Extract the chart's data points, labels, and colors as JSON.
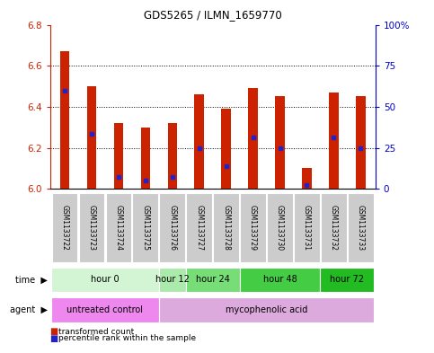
{
  "title": "GDS5265 / ILMN_1659770",
  "samples": [
    "GSM1133722",
    "GSM1133723",
    "GSM1133724",
    "GSM1133725",
    "GSM1133726",
    "GSM1133727",
    "GSM1133728",
    "GSM1133729",
    "GSM1133730",
    "GSM1133731",
    "GSM1133732",
    "GSM1133733"
  ],
  "bar_tops": [
    6.67,
    6.5,
    6.32,
    6.3,
    6.32,
    6.46,
    6.39,
    6.49,
    6.45,
    6.1,
    6.47,
    6.45
  ],
  "bar_bottoms": [
    6.0,
    6.0,
    6.0,
    6.0,
    6.0,
    6.0,
    6.0,
    6.0,
    6.0,
    6.0,
    6.0,
    6.0
  ],
  "percentile_yvals": [
    6.48,
    6.27,
    6.06,
    6.04,
    6.06,
    6.2,
    6.11,
    6.25,
    6.2,
    6.02,
    6.25,
    6.2
  ],
  "bar_color": "#cc2200",
  "percentile_color": "#2222cc",
  "ylim": [
    6.0,
    6.8
  ],
  "yticks": [
    6.0,
    6.2,
    6.4,
    6.6,
    6.8
  ],
  "right_yticks": [
    0,
    25,
    50,
    75,
    100
  ],
  "right_ylabels": [
    "0",
    "25",
    "50",
    "75",
    "100%"
  ],
  "time_groups": [
    {
      "label": "hour 0",
      "cols": [
        0,
        1,
        2,
        3
      ],
      "color": "#d4f5d4"
    },
    {
      "label": "hour 12",
      "cols": [
        4
      ],
      "color": "#aaeaaa"
    },
    {
      "label": "hour 24",
      "cols": [
        5,
        6
      ],
      "color": "#77dd77"
    },
    {
      "label": "hour 48",
      "cols": [
        7,
        8,
        9
      ],
      "color": "#44cc44"
    },
    {
      "label": "hour 72",
      "cols": [
        10,
        11
      ],
      "color": "#22bb22"
    }
  ],
  "agent_groups": [
    {
      "label": "untreated control",
      "cols": [
        0,
        1,
        2,
        3
      ],
      "color": "#ee88ee"
    },
    {
      "label": "mycophenolic acid",
      "cols": [
        4,
        5,
        6,
        7,
        8,
        9,
        10,
        11
      ],
      "color": "#ddaadd"
    }
  ],
  "background_color": "#ffffff",
  "left_axis_color": "#cc2200",
  "right_axis_color": "#0000cc",
  "bar_width": 0.35
}
